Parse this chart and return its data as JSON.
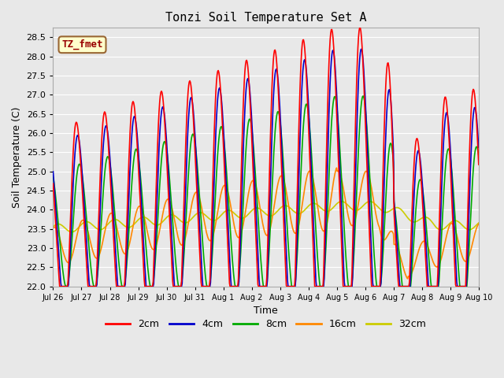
{
  "title": "Tonzi Soil Temperature Set A",
  "xlabel": "Time",
  "ylabel": "Soil Temperature (C)",
  "ylim": [
    22.0,
    28.75
  ],
  "yticks": [
    22.0,
    22.5,
    23.0,
    23.5,
    24.0,
    24.5,
    25.0,
    25.5,
    26.0,
    26.5,
    27.0,
    27.5,
    28.0,
    28.5
  ],
  "annotation": "TZ_fmet",
  "annotation_bg": "#ffffcc",
  "annotation_border": "#996633",
  "annotation_text_color": "#990000",
  "fig_bg_color": "#e8e8e8",
  "plot_bg_color": "#e8e8e8",
  "grid_color": "#ffffff",
  "series": {
    "2cm": {
      "color": "#ff0000",
      "linewidth": 1.2
    },
    "4cm": {
      "color": "#0000cc",
      "linewidth": 1.2
    },
    "8cm": {
      "color": "#00aa00",
      "linewidth": 1.2
    },
    "16cm": {
      "color": "#ff8800",
      "linewidth": 1.2
    },
    "32cm": {
      "color": "#cccc00",
      "linewidth": 1.2
    }
  },
  "xtick_labels": [
    "Jul 26",
    "Jul 27",
    "Jul 28",
    "Jul 29",
    "Jul 30",
    "Jul 31",
    "Aug 1",
    "Aug 2",
    "Aug 3",
    "Aug 4",
    "Aug 5",
    "Aug 6",
    "Aug 7",
    "Aug 8",
    "Aug 9",
    "Aug 10"
  ],
  "n_days": 15,
  "points_per_day": 48
}
